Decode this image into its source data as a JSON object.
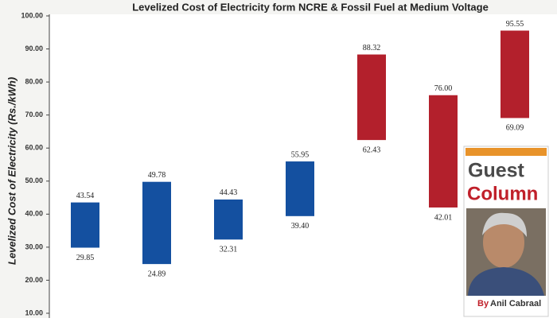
{
  "chart_data": {
    "type": "floating-bar",
    "title": "Levelized Cost of Electricity form NCRE & Fossil Fuel at Medium Voltage",
    "y_label": "Levelized Cost of Electricity (Rs./kWh)",
    "categories": [
      null,
      null,
      null,
      null,
      null,
      null,
      null
    ],
    "low": {
      "values": [
        29.85,
        24.89,
        32.31,
        39.4,
        62.43,
        42.01,
        69.09
      ],
      "value_labels": [
        "29.85",
        "24.89",
        "32.31",
        "39.40",
        "62.43",
        "42.01",
        "69.09"
      ]
    },
    "high": {
      "values": [
        43.54,
        49.78,
        44.43,
        55.95,
        88.32,
        76.0,
        95.55
      ],
      "value_labels": [
        "43.54",
        "49.78",
        "44.43",
        "55.95",
        "88.32",
        "76.00",
        "95.55"
      ]
    },
    "colors": [
      "#1450a0",
      "#1450a0",
      "#1450a0",
      "#1450a0",
      "#b3202c",
      "#b3202c",
      "#b3202c"
    ],
    "ylim": [
      10,
      100
    ],
    "yticks": [
      {
        "value": 10,
        "label": "10.00"
      },
      {
        "value": 20,
        "label": "20.00"
      },
      {
        "value": 30,
        "label": "30.00"
      },
      {
        "value": 40,
        "label": "40.00"
      },
      {
        "value": 50,
        "label": "50.00"
      },
      {
        "value": 60,
        "label": "60.00"
      },
      {
        "value": 70,
        "label": "70.00"
      },
      {
        "value": 80,
        "label": "80.00"
      },
      {
        "value": 90,
        "label": "90.00"
      },
      {
        "value": 100,
        "label": "100.00"
      }
    ],
    "grid": false
  },
  "overlay": {
    "line1": "Guest",
    "line2": "Column",
    "byline_prefix": "By",
    "author": "Anil Cabraal"
  }
}
